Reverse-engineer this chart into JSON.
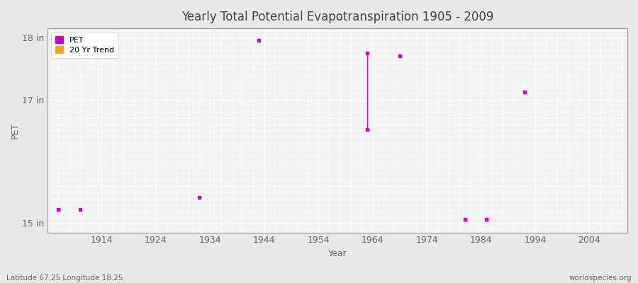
{
  "title": "Yearly Total Potential Evapotranspiration 1905 - 2009",
  "xlabel": "Year",
  "ylabel": "PET",
  "xlim": [
    1904,
    2011
  ],
  "ylim": [
    14.85,
    18.15
  ],
  "yticks": [
    15,
    17,
    18
  ],
  "ytick_labels": [
    "15 in",
    "17 in",
    "18 in"
  ],
  "xticks": [
    1914,
    1924,
    1934,
    1944,
    1954,
    1964,
    1974,
    1984,
    1994,
    2004
  ],
  "background_color": "#e8e8e8",
  "plot_bg_color": "#f2f2f2",
  "grid_color": "#ffffff",
  "title_color": "#444444",
  "axis_color": "#666666",
  "pet_color": "#cc00cc",
  "trend_color": "#ffa500",
  "pet_points": [
    [
      1906,
      15.22
    ],
    [
      1910,
      15.22
    ],
    [
      1932,
      15.42
    ],
    [
      1943,
      17.96
    ],
    [
      1963,
      17.75
    ],
    [
      1963,
      16.52
    ],
    [
      1969,
      17.71
    ],
    [
      1981,
      15.06
    ],
    [
      1985,
      15.06
    ],
    [
      1992,
      17.12
    ]
  ],
  "pet_line_segments": [
    [
      [
        1963,
        17.75
      ],
      [
        1963,
        16.52
      ]
    ]
  ],
  "footer_left": "Latitude 67.25 Longitude 18.25",
  "footer_right": "worldspecies.org"
}
